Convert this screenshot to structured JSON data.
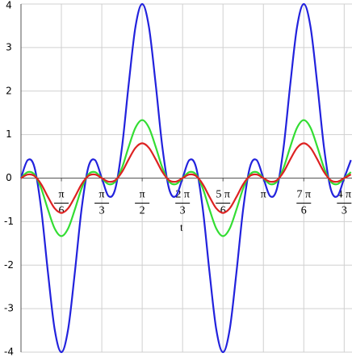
{
  "chart_data": {
    "type": "line",
    "xlabel": "t",
    "x": [
      0,
      0.0873,
      0.1745,
      0.2618,
      0.3491,
      0.4363,
      0.5236,
      0.6109,
      0.6981,
      0.7854,
      0.8727,
      0.9599,
      1.0472,
      1.1345,
      1.2217,
      1.309,
      1.3963,
      1.4835,
      1.5708,
      1.6581,
      1.7453,
      1.8326,
      1.9199,
      2.0071,
      2.0944,
      2.1817,
      2.2689,
      2.3562,
      2.4435,
      2.5307,
      2.618,
      2.7053,
      2.7925,
      2.8798,
      2.9671,
      3.0543,
      3.1416,
      3.2289,
      3.3161,
      3.4034,
      3.4907,
      3.5779,
      3.6652,
      3.7525,
      3.8397,
      3.927,
      4.0143,
      4.1015,
      4.1888,
      4.2761
    ],
    "series": [
      {
        "color": "#2222dd",
        "values": [
          0,
          0.414,
          0.25,
          -0.707,
          -2.165,
          -3.475,
          -4,
          -3.475,
          -2.165,
          -0.707,
          0.25,
          0.414,
          0,
          -0.414,
          -0.25,
          0.707,
          2.165,
          3.475,
          4,
          3.475,
          2.165,
          0.707,
          -0.25,
          -0.414,
          0,
          0.414,
          0.25,
          -0.707,
          -2.165,
          -3.475,
          -4,
          -3.475,
          -2.165,
          -0.707,
          0.25,
          0.414,
          0,
          -0.414,
          -0.25,
          0.707,
          2.165,
          3.475,
          4,
          3.475,
          2.165,
          0.707,
          -0.25,
          -0.414,
          0,
          0.414
        ]
      },
      {
        "color": "#33dd33",
        "values": [
          0,
          0.138,
          0.083,
          -0.236,
          -0.722,
          -1.158,
          -1.333,
          -1.158,
          -0.722,
          -0.236,
          0.083,
          0.138,
          0,
          -0.138,
          -0.083,
          0.236,
          0.722,
          1.158,
          1.333,
          1.158,
          0.722,
          0.236,
          -0.083,
          -0.138,
          0,
          0.138,
          0.083,
          -0.236,
          -0.722,
          -1.158,
          -1.333,
          -1.158,
          -0.722,
          -0.236,
          0.083,
          0.138,
          0,
          -0.138,
          -0.083,
          0.236,
          0.722,
          1.158,
          1.333,
          1.158,
          0.722,
          0.236,
          -0.083,
          -0.138,
          0,
          0.138
        ]
      },
      {
        "color": "#dd2222",
        "values": [
          0,
          0.083,
          0.05,
          -0.141,
          -0.433,
          -0.695,
          -0.8,
          -0.695,
          -0.433,
          -0.141,
          0.05,
          0.083,
          0,
          -0.083,
          -0.05,
          0.141,
          0.433,
          0.695,
          0.8,
          0.695,
          0.433,
          0.141,
          -0.05,
          -0.083,
          0,
          0.083,
          0.05,
          -0.141,
          -0.433,
          -0.695,
          -0.8,
          -0.695,
          -0.433,
          -0.141,
          0.05,
          0.083,
          0,
          -0.083,
          -0.05,
          0.141,
          0.433,
          0.695,
          0.8,
          0.695,
          0.433,
          0.141,
          -0.05,
          -0.083,
          0,
          0.083
        ]
      }
    ],
    "xlim": [
      0,
      4.29
    ],
    "ylim": [
      -4,
      4
    ],
    "xticks": [
      {
        "value": 0.5236,
        "label": {
          "num": "π",
          "den": "6"
        }
      },
      {
        "value": 1.0472,
        "label": {
          "num": "π",
          "den": "3"
        }
      },
      {
        "value": 1.5708,
        "label": {
          "num": "π",
          "den": "2"
        }
      },
      {
        "value": 2.0944,
        "label": {
          "num": "2 π",
          "den": "3"
        }
      },
      {
        "value": 2.618,
        "label": {
          "num": "5 π",
          "den": "6"
        }
      },
      {
        "value": 3.1416,
        "label": {
          "num": "π"
        }
      },
      {
        "value": 3.6652,
        "label": {
          "num": "7 π",
          "den": "6"
        }
      },
      {
        "value": 4.1888,
        "label": {
          "num": "4 π",
          "den": "3"
        }
      }
    ],
    "yticks": [
      -4,
      -3,
      -2,
      -1,
      0,
      1,
      2,
      3,
      4
    ],
    "grid": true
  }
}
